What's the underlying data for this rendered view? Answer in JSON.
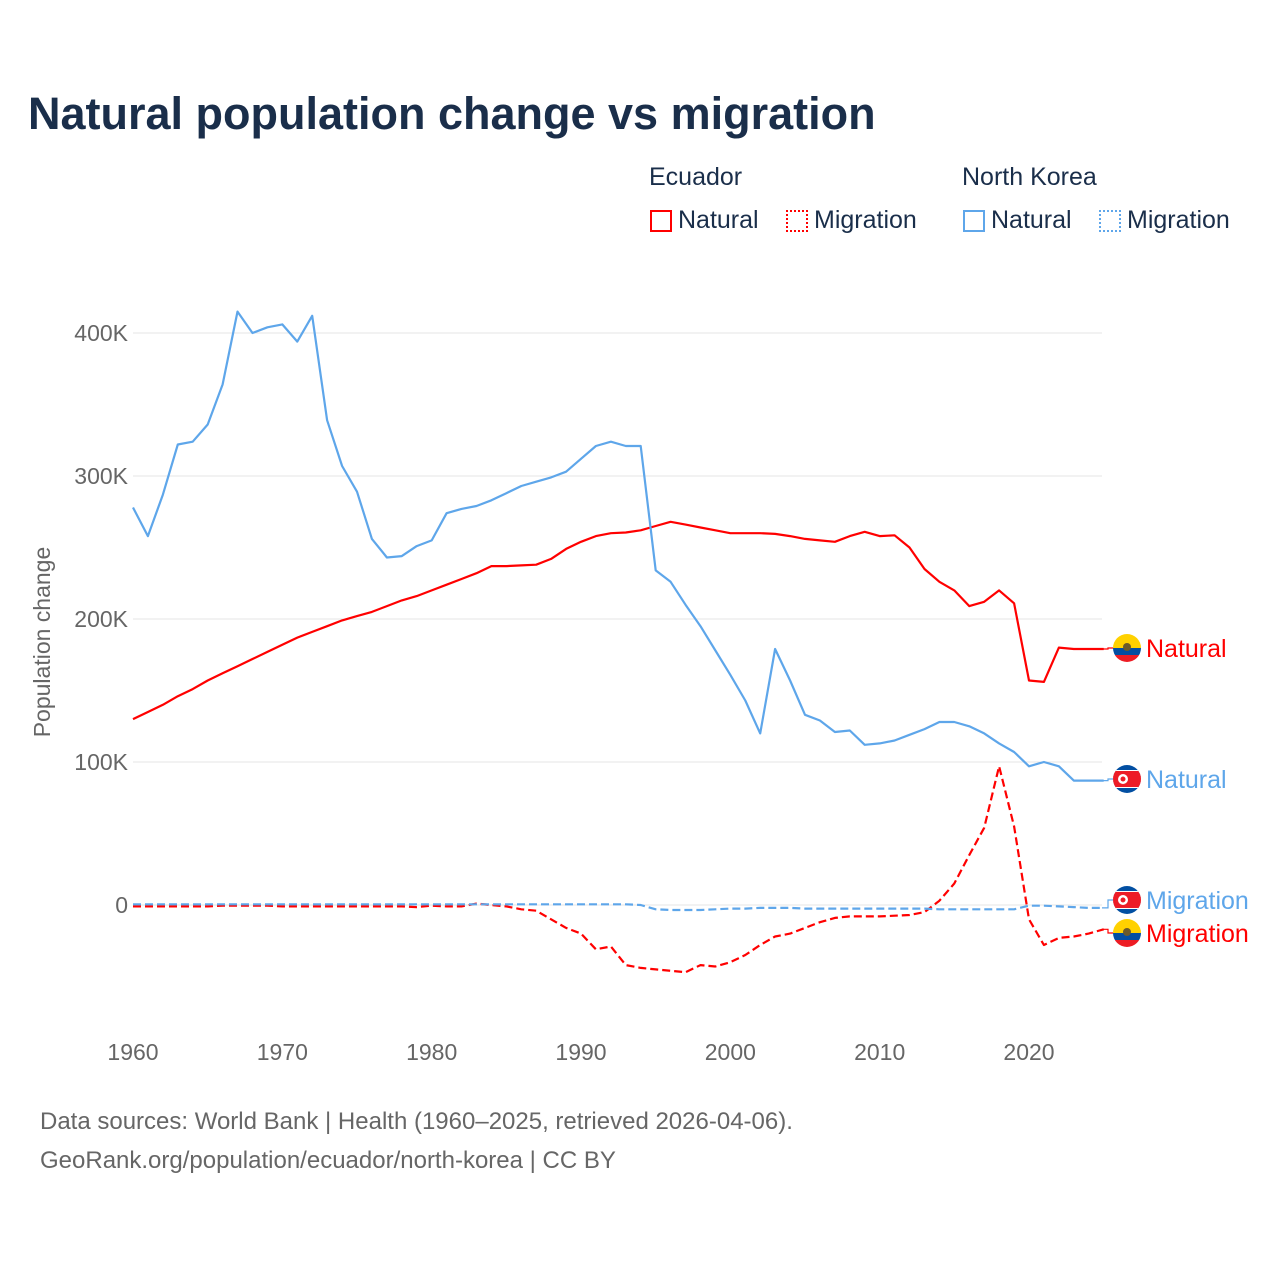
{
  "title": "Natural population change vs migration",
  "legend": {
    "groups": [
      {
        "name": "Ecuador",
        "color": "#ff0000",
        "items": [
          "Natural",
          "Migration"
        ]
      },
      {
        "name": "North Korea",
        "color": "#5ea6ea",
        "items": [
          "Natural",
          "Migration"
        ]
      }
    ]
  },
  "footer": {
    "line1": "Data sources: World Bank | Health (1960–2025, retrieved 2026-04-06).",
    "line2": "GeoRank.org/population/ecuador/north-korea | CC BY"
  },
  "chart_data": {
    "type": "line",
    "title": "Natural population change vs migration",
    "ylabel": "Population change",
    "xlabel": "",
    "xlim": [
      1960,
      2025
    ],
    "ylim": [
      -85000,
      440000
    ],
    "xticks": [
      1960,
      1970,
      1980,
      1990,
      2000,
      2010,
      2020
    ],
    "xtick_labels": [
      "1960",
      "1970",
      "1980",
      "1990",
      "2000",
      "2010",
      "2020"
    ],
    "yticks": [
      0,
      100000,
      200000,
      300000,
      400000
    ],
    "ytick_labels": [
      "0",
      "100K",
      "200K",
      "300K",
      "400K"
    ],
    "grid": true,
    "legend_position": "top-right",
    "series": [
      {
        "name": "Ecuador Natural",
        "label": "Natural",
        "color": "#ff0000",
        "dash": false,
        "start": 1960,
        "values": [
          130,
          135,
          140,
          146,
          151,
          157,
          162,
          167,
          172,
          177,
          182,
          187,
          191,
          195,
          199,
          202,
          205,
          209,
          213,
          216,
          220,
          224,
          228,
          232,
          237,
          237,
          237.5,
          238,
          242,
          249,
          254,
          258,
          260,
          260.5,
          262,
          265,
          268,
          266,
          264,
          262,
          260,
          260,
          260,
          259.5,
          258,
          256,
          255,
          254,
          258,
          261,
          258,
          258.5,
          250,
          235,
          226,
          220,
          209,
          212,
          220,
          211,
          157,
          156,
          180,
          179,
          179,
          179
        ]
      },
      {
        "name": "Ecuador Migration",
        "label": "Migration",
        "color": "#ff0000",
        "dash": true,
        "start": 1960,
        "values": [
          -1,
          -1,
          -1,
          -1,
          -1,
          -1,
          -0.5,
          -0.5,
          -0.5,
          -0.5,
          -1,
          -1,
          -1,
          -1,
          -1,
          -1,
          -1,
          -1,
          -1,
          -1.5,
          -0.5,
          -1,
          -1,
          1,
          0,
          -1,
          -3,
          -4,
          -10,
          -16,
          -20,
          -31,
          -29,
          -42,
          -44,
          -45,
          -46,
          -47,
          -42,
          -43,
          -40,
          -35,
          -28,
          -22,
          -20,
          -16,
          -12,
          -9,
          -8,
          -8,
          -8,
          -7.5,
          -7,
          -5,
          3,
          15,
          35,
          54,
          97,
          55,
          -10,
          -28,
          -23,
          -22,
          -20,
          -17
        ]
      },
      {
        "name": "North Korea Natural",
        "label": "Natural",
        "color": "#5ea6ea",
        "dash": false,
        "start": 1960,
        "values": [
          278,
          258,
          287,
          322,
          324,
          336,
          364,
          415,
          400,
          404,
          406,
          394,
          412,
          339,
          307,
          289,
          256,
          243,
          244,
          251,
          255,
          274,
          277,
          279,
          283,
          288,
          293,
          296,
          299,
          303,
          312,
          321,
          324,
          321,
          321,
          234,
          226,
          210,
          195,
          178,
          161,
          143,
          120,
          179,
          157,
          133,
          129,
          121,
          122,
          112,
          113,
          115,
          119,
          123,
          128,
          128,
          125,
          120,
          113,
          107,
          97,
          100,
          97,
          87,
          87,
          87
        ]
      },
      {
        "name": "North Korea Migration",
        "label": "Migration",
        "color": "#5ea6ea",
        "dash": true,
        "start": 1960,
        "values": [
          0.5,
          0.5,
          0.5,
          0.5,
          0.5,
          0.5,
          0.5,
          0.5,
          0.5,
          0.5,
          0.5,
          0.5,
          0.5,
          0.5,
          0.5,
          0.5,
          0.5,
          0.5,
          0.5,
          0.5,
          0.5,
          0.5,
          0.5,
          0.5,
          0.5,
          0.5,
          0.5,
          0.5,
          0.5,
          0.5,
          0.5,
          0.5,
          0.5,
          0.5,
          0,
          -3,
          -3.5,
          -3.5,
          -3.5,
          -3,
          -2.5,
          -2.5,
          -2,
          -2,
          -2,
          -2.5,
          -2.5,
          -2.5,
          -2.5,
          -2.5,
          -2.5,
          -2.5,
          -2.5,
          -2.5,
          -3,
          -3,
          -3,
          -3,
          -3,
          -3,
          -0.5,
          -0.5,
          -1,
          -1.5,
          -2,
          -2
        ]
      }
    ],
    "unit": "thousands"
  }
}
